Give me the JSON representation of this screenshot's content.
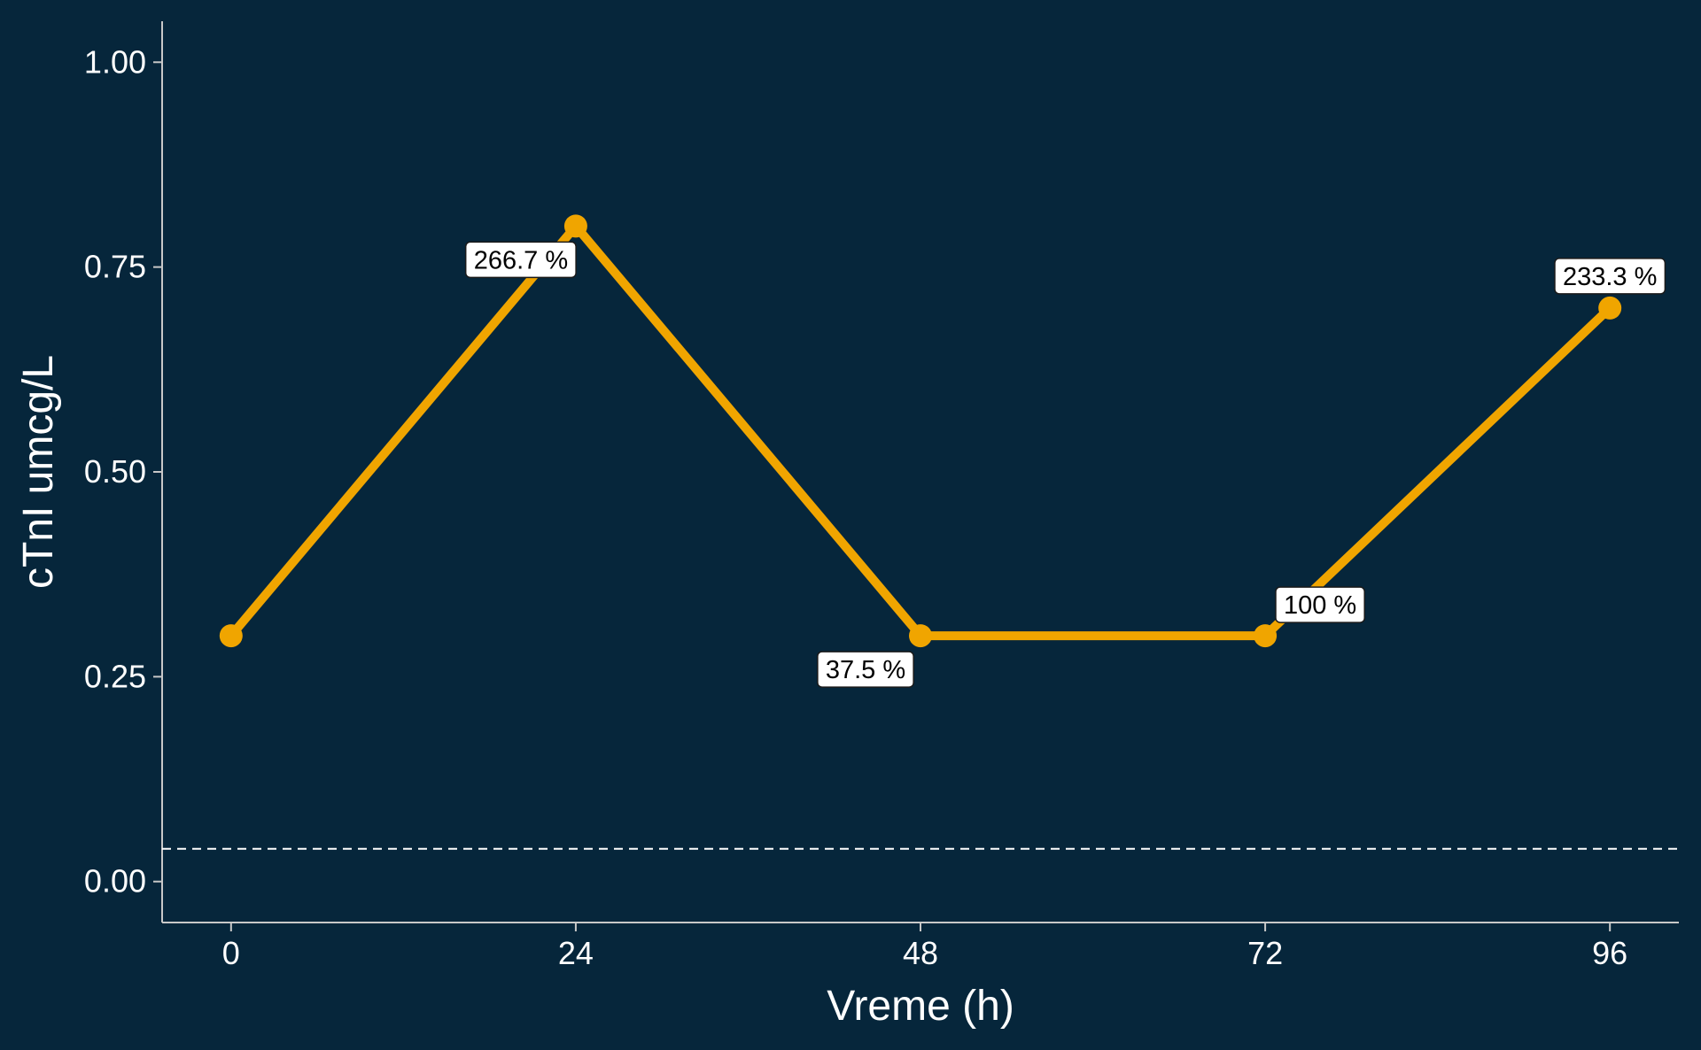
{
  "chart_data": {
    "type": "line",
    "title": "",
    "xlabel": "Vreme (h)",
    "ylabel": "cTnI umcg/L",
    "x": [
      0,
      24,
      48,
      72,
      96
    ],
    "series": [
      {
        "values": [
          0.3,
          0.8,
          0.3,
          0.3,
          0.7
        ],
        "point_labels": [
          null,
          "266.7 %",
          "37.5 %",
          "100 %",
          "233.3 %"
        ]
      }
    ],
    "xticks": [
      "0",
      "24",
      "48",
      "72",
      "96"
    ],
    "yticks": [
      "0.00",
      "0.25",
      "0.50",
      "0.75",
      "1.00"
    ],
    "xlim": [
      -4.8,
      100.8
    ],
    "ylim": [
      -0.05,
      1.05
    ],
    "reference_line": {
      "y": 0.04,
      "style": "dashed"
    },
    "grid": false,
    "colors": {
      "background": "#06263b",
      "series": "#f0a500",
      "axis": "#c8c8c8",
      "text": "#ffffff",
      "label_box": "#ffffff",
      "label_text": "#000000"
    }
  }
}
